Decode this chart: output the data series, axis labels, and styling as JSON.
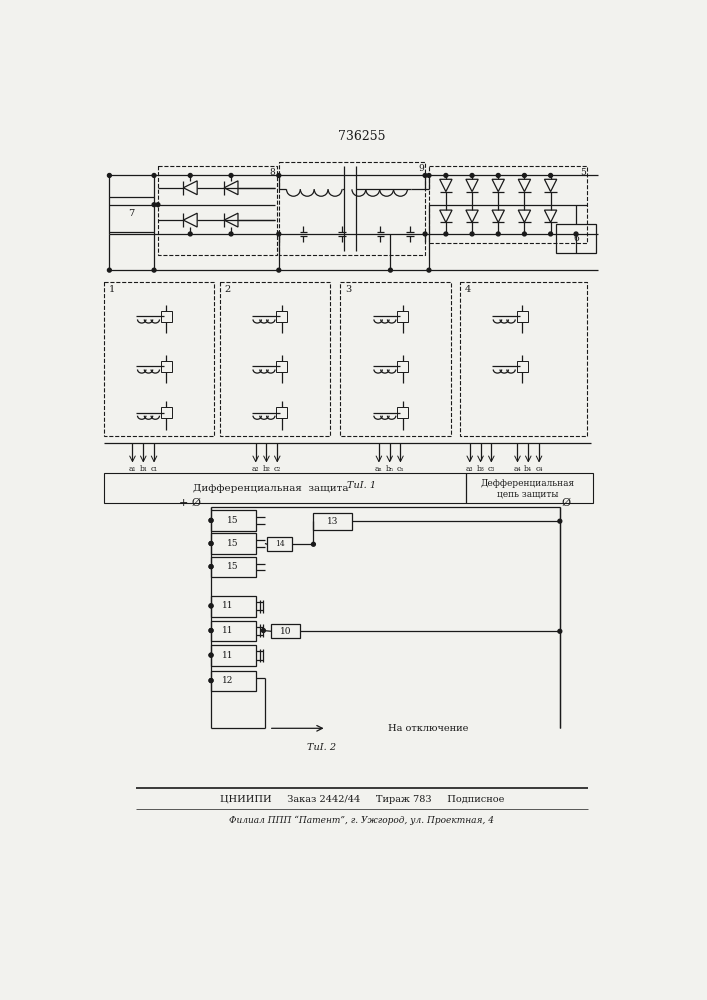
{
  "patent_number": "736255",
  "bg_color": "#f2f2ee",
  "line_color": "#1a1a1a",
  "fig1_caption": "ΤиӀ. 1",
  "fig2_caption": "ΤиӀ. 2",
  "diff_prot_label": "Дифференциальная  защита",
  "diff_chain_label1": "Дефференциальная",
  "diff_chain_label2": "цепь защиты",
  "na_otkl": "На отключение",
  "footer1": "ЦНИИПИ     Заказ 2442/44     Тираж 783     Подписное",
  "footer2": "Филиал ППП “Патент”, г. Ужгород, ул. Проектная, 4"
}
